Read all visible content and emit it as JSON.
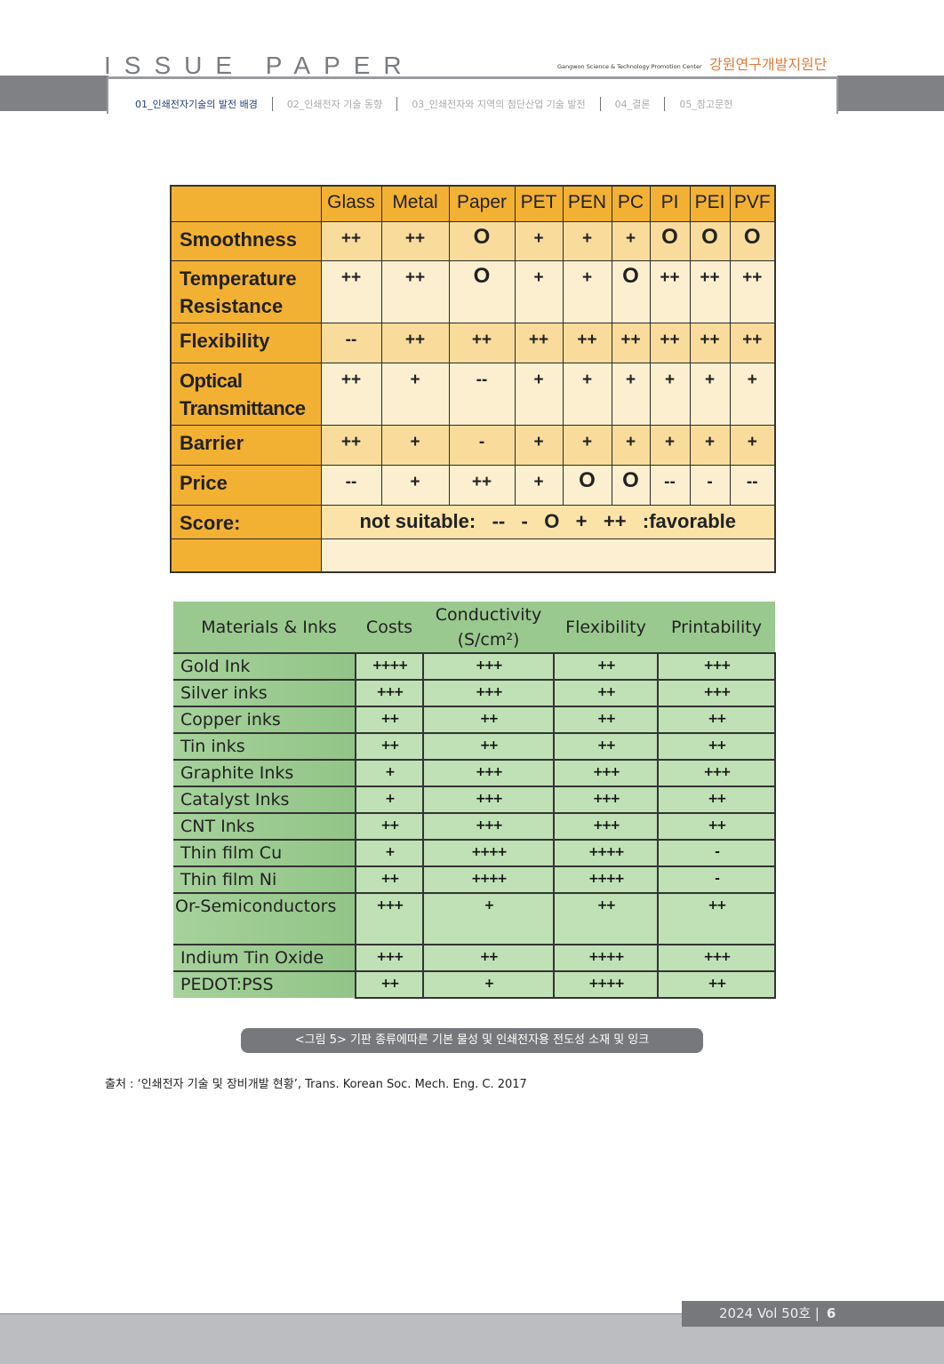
{
  "header": {
    "brand": "ISSUE PAPER",
    "center_en": "Gangwon Science & Technology Promotion Center",
    "center_ko": "강원연구개발지원단",
    "nav": [
      {
        "label": "01_인쇄전자기술의 발전 배경",
        "active": true
      },
      {
        "label": "02_인쇄전자 기술 동향",
        "active": false
      },
      {
        "label": "03_인쇄전자와 지역의 첨단산업 기술 발전",
        "active": false
      },
      {
        "label": "04_결론",
        "active": false
      },
      {
        "label": "05_참고문헌",
        "active": false
      }
    ]
  },
  "substrate_table": {
    "columns": [
      "Glass",
      "Metal",
      "Paper",
      "PET",
      "PEN",
      "PC",
      "PI",
      "PEI",
      "PVF"
    ],
    "rows": [
      {
        "label": "Smoothness",
        "values": [
          "++",
          "++",
          "O",
          "+",
          "+",
          "+",
          "O",
          "O",
          "O"
        ]
      },
      {
        "label": "Temperature Resistance",
        "values": [
          "++",
          "++",
          "O",
          "+",
          "+",
          "O",
          "++",
          "++",
          "++"
        ]
      },
      {
        "label": "Flexibility",
        "values": [
          "--",
          "++",
          "++",
          "++",
          "++",
          "++",
          "++",
          "++",
          "++"
        ]
      },
      {
        "label": "Optical Transmittance",
        "values": [
          "++",
          "+",
          "--",
          "+",
          "+",
          "+",
          "+",
          "+",
          "+"
        ]
      },
      {
        "label": "Barrier",
        "values": [
          "++",
          "+",
          "-",
          "+",
          "+",
          "+",
          "+",
          "+",
          "+"
        ]
      },
      {
        "label": "Price",
        "values": [
          "--",
          "+",
          "++",
          "+",
          "O",
          "O",
          "--",
          "-",
          "--"
        ]
      }
    ],
    "score_label": "Score:",
    "score_text": "not suitable:   --   -   O   +   ++   :favorable"
  },
  "ink_table": {
    "columns": [
      "Materials & Inks",
      "Costs",
      "Conductivity (S/cm²)",
      "Flexibility",
      "Printability"
    ],
    "rows": [
      {
        "label": "Gold Ink",
        "values": [
          "++++",
          "+++",
          "++",
          "+++"
        ]
      },
      {
        "label": "Silver inks",
        "values": [
          "+++",
          "+++",
          "++",
          "+++"
        ]
      },
      {
        "label": "Copper inks",
        "values": [
          "++",
          "++",
          "++",
          "++"
        ]
      },
      {
        "label": "Tin inks",
        "values": [
          "++",
          "++",
          "++",
          "++"
        ]
      },
      {
        "label": "Graphite Inks",
        "values": [
          "+",
          "+++",
          "+++",
          "+++"
        ]
      },
      {
        "label": "Catalyst Inks",
        "values": [
          "+",
          "+++",
          "+++",
          "++"
        ]
      },
      {
        "label": "CNT Inks",
        "values": [
          "++",
          "+++",
          "+++",
          "++"
        ]
      },
      {
        "label": "Thin film Cu",
        "values": [
          "+",
          "++++",
          "++++",
          "-"
        ]
      },
      {
        "label": "Thin film Ni",
        "values": [
          "++",
          "++++",
          "++++",
          "-"
        ]
      },
      {
        "label": "Or-Semiconductors",
        "values": [
          "+++",
          "+",
          "++",
          "++"
        ]
      },
      {
        "label": "Indium Tin Oxide",
        "values": [
          "+++",
          "++",
          "++++",
          "+++"
        ]
      },
      {
        "label": "PEDOT:PSS",
        "values": [
          "++",
          "+",
          "++++",
          "++"
        ]
      }
    ]
  },
  "caption": "<그림 5> 기판 종류에따른 기본 물성 및 인쇄전자용 전도성 소재 및 잉크",
  "source": "출처 : ‘인쇄전자 기술 및 장비개발 현황’, Trans. Korean Soc. Mech. Eng. C. 2017",
  "footer": {
    "issue": "2024 Vol 50호  |",
    "page": "6"
  }
}
